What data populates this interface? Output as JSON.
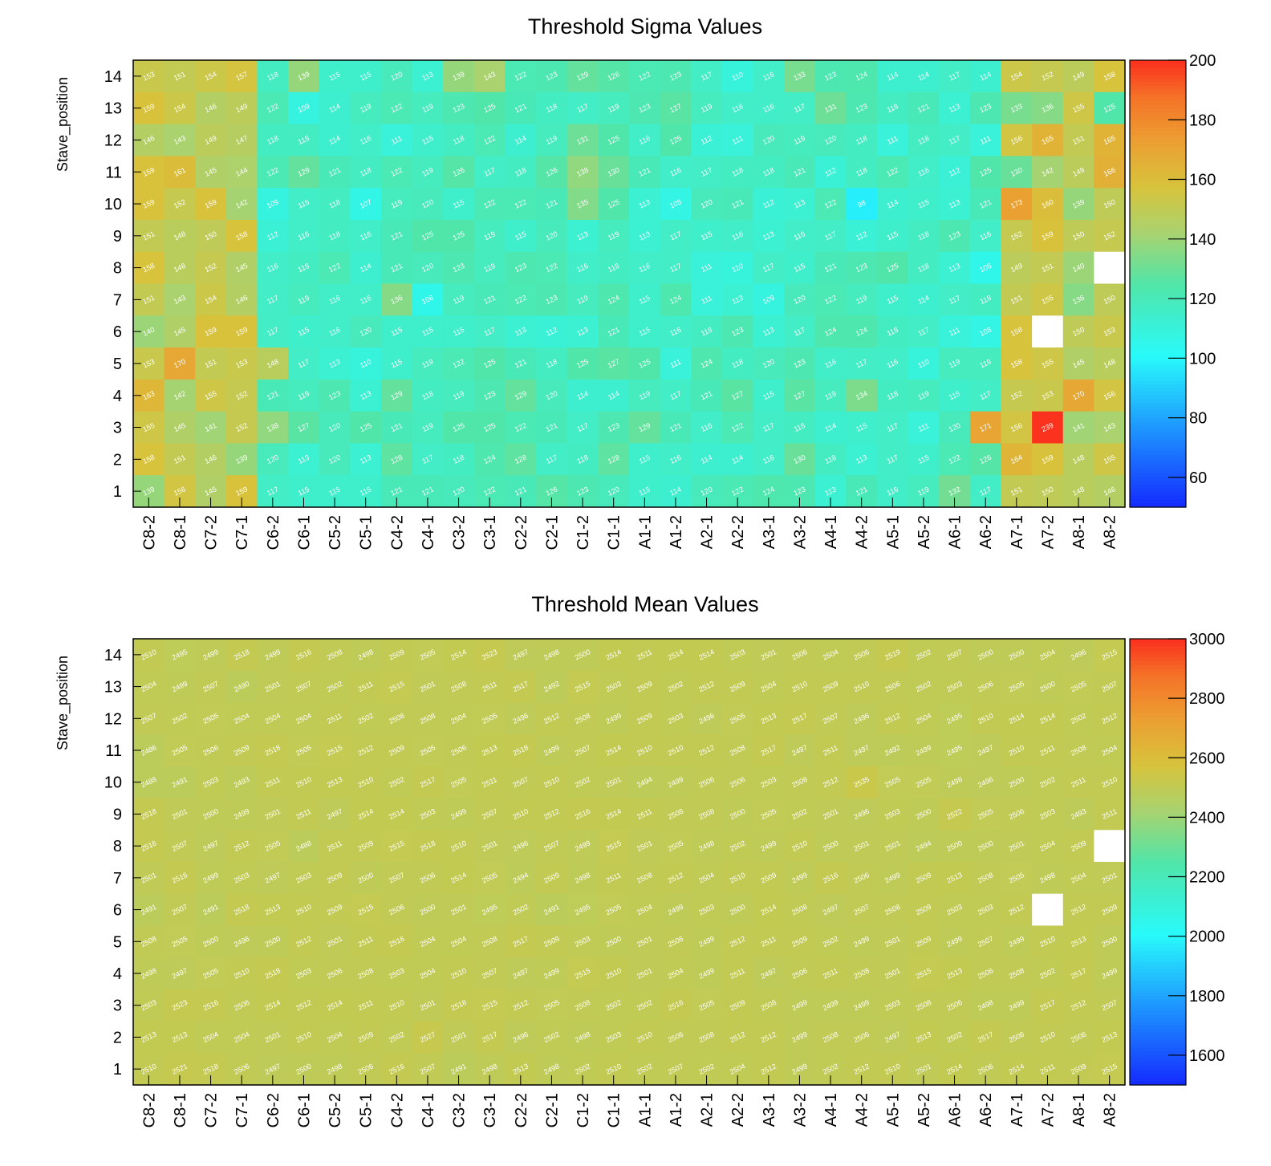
{
  "chart_data": [
    {
      "type": "heatmap",
      "title": "Threshold Sigma Values",
      "ylabel": "Stave_position",
      "x_categories": [
        "C8-2",
        "C8-1",
        "C7-2",
        "C7-1",
        "C6-2",
        "C6-1",
        "C5-2",
        "C5-1",
        "C4-2",
        "C4-1",
        "C3-2",
        "C3-1",
        "C2-2",
        "C2-1",
        "C1-2",
        "C1-1",
        "A1-1",
        "A1-2",
        "A2-1",
        "A2-2",
        "A3-1",
        "A3-2",
        "A4-1",
        "A4-2",
        "A5-1",
        "A5-2",
        "A6-1",
        "A6-2",
        "A7-1",
        "A7-2",
        "A8-1",
        "A8-2"
      ],
      "y_categories": [
        "14",
        "13",
        "12",
        "11",
        "10",
        "9",
        "8",
        "7",
        "6",
        "5",
        "4",
        "3",
        "2",
        "1"
      ],
      "zlim": [
        50,
        200
      ],
      "colorbar_ticks": [
        200,
        180,
        160,
        140,
        120,
        100,
        80,
        60
      ],
      "cell_labels": [
        [
          "153",
          "151",
          "154",
          "157",
          "118",
          "139",
          "115",
          "115",
          "120",
          "113",
          "139",
          "143",
          "122",
          "123",
          "129",
          "126",
          "122",
          "123",
          "117",
          "110",
          "116",
          "133",
          "123",
          "124",
          "114",
          "114",
          "117",
          "114",
          "154",
          "152",
          "149",
          "158"
        ],
        [
          "159",
          "154",
          "146",
          "149",
          "122",
          "109",
          "114",
          "119",
          "122",
          "119",
          "123",
          "125",
          "121",
          "118",
          "117",
          "119",
          "123",
          "127",
          "119",
          "116",
          "116",
          "117",
          "131",
          "123",
          "118",
          "121",
          "113",
          "123",
          "133",
          "136",
          "155",
          "125"
        ],
        [
          "146",
          "143",
          "149",
          "147",
          "118",
          "118",
          "114",
          "116",
          "111",
          "115",
          "118",
          "122",
          "114",
          "119",
          "131",
          "125",
          "116",
          "125",
          "112",
          "111",
          "120",
          "119",
          "120",
          "118",
          "111",
          "118",
          "117",
          "111",
          "156",
          "165",
          "151",
          "165"
        ],
        [
          "159",
          "161",
          "145",
          "144",
          "122",
          "129",
          "121",
          "118",
          "122",
          "119",
          "126",
          "117",
          "118",
          "126",
          "138",
          "130",
          "121",
          "116",
          "117",
          "118",
          "118",
          "121",
          "112",
          "118",
          "122",
          "116",
          "112",
          "125",
          "130",
          "142",
          "149",
          "166"
        ],
        [
          "159",
          "152",
          "159",
          "142",
          "109",
          "116",
          "118",
          "107",
          "119",
          "120",
          "115",
          "122",
          "122",
          "121",
          "135",
          "125",
          "113",
          "108",
          "120",
          "121",
          "112",
          "113",
          "122",
          "98",
          "114",
          "115",
          "113",
          "121",
          "173",
          "160",
          "139",
          "150"
        ],
        [
          "151",
          "148",
          "150",
          "158",
          "112",
          "116",
          "118",
          "116",
          "121",
          "125",
          "125",
          "119",
          "115",
          "120",
          "113",
          "119",
          "113",
          "117",
          "115",
          "116",
          "113",
          "116",
          "117",
          "112",
          "115",
          "118",
          "123",
          "116",
          "152",
          "159",
          "150",
          "152"
        ],
        [
          "158",
          "148",
          "152",
          "145",
          "116",
          "118",
          "122",
          "114",
          "121",
          "120",
          "123",
          "119",
          "123",
          "122",
          "116",
          "118",
          "116",
          "117",
          "111",
          "110",
          "117",
          "115",
          "121",
          "123",
          "125",
          "118",
          "113",
          "106",
          "149",
          "151",
          "140",
          ""
        ],
        [
          "151",
          "143",
          "154",
          "146",
          "117",
          "119",
          "116",
          "116",
          "136",
          "106",
          "119",
          "121",
          "122",
          "123",
          "119",
          "124",
          "115",
          "124",
          "111",
          "113",
          "109",
          "120",
          "122",
          "119",
          "115",
          "114",
          "117",
          "118",
          "151",
          "155",
          "136",
          "150"
        ],
        [
          "140",
          "145",
          "159",
          "159",
          "117",
          "115",
          "116",
          "120",
          "115",
          "115",
          "115",
          "117",
          "113",
          "112",
          "113",
          "121",
          "115",
          "116",
          "118",
          "123",
          "113",
          "117",
          "124",
          "124",
          "118",
          "117",
          "111",
          "108",
          "158",
          "",
          "150",
          "153"
        ],
        [
          "153",
          "170",
          "151",
          "153",
          "148",
          "117",
          "113",
          "110",
          "115",
          "119",
          "122",
          "125",
          "121",
          "118",
          "125",
          "127",
          "125",
          "111",
          "124",
          "118",
          "120",
          "123",
          "116",
          "117",
          "116",
          "110",
          "119",
          "119",
          "158",
          "155",
          "145",
          "148"
        ],
        [
          "163",
          "142",
          "155",
          "152",
          "121",
          "119",
          "123",
          "113",
          "129",
          "118",
          "119",
          "123",
          "129",
          "120",
          "114",
          "114",
          "119",
          "117",
          "121",
          "127",
          "115",
          "127",
          "119",
          "134",
          "118",
          "119",
          "115",
          "117",
          "152",
          "153",
          "170",
          "156"
        ],
        [
          "155",
          "145",
          "141",
          "152",
          "138",
          "127",
          "120",
          "125",
          "121",
          "119",
          "125",
          "125",
          "122",
          "121",
          "117",
          "123",
          "129",
          "121",
          "116",
          "122",
          "117",
          "118",
          "114",
          "115",
          "117",
          "111",
          "120",
          "171",
          "156",
          "239",
          "141",
          "143"
        ],
        [
          "158",
          "151",
          "146",
          "139",
          "120",
          "113",
          "120",
          "113",
          "128",
          "117",
          "118",
          "124",
          "128",
          "117",
          "118",
          "128",
          "115",
          "116",
          "114",
          "114",
          "116",
          "130",
          "118",
          "113",
          "117",
          "115",
          "122",
          "126",
          "164",
          "159",
          "148",
          "155"
        ],
        [
          "139",
          "156",
          "145",
          "159",
          "117",
          "115",
          "115",
          "115",
          "121",
          "121",
          "120",
          "122",
          "121",
          "126",
          "123",
          "120",
          "115",
          "114",
          "120",
          "122",
          "124",
          "123",
          "113",
          "121",
          "116",
          "119",
          "132",
          "117",
          "151",
          "150",
          "148",
          "146"
        ]
      ]
    },
    {
      "type": "heatmap",
      "title": "Threshold Mean Values",
      "ylabel": "Stave_position",
      "x_categories": [
        "C8-2",
        "C8-1",
        "C7-2",
        "C7-1",
        "C6-2",
        "C6-1",
        "C5-2",
        "C5-1",
        "C4-2",
        "C4-1",
        "C3-2",
        "C3-1",
        "C2-2",
        "C2-1",
        "C1-2",
        "C1-1",
        "A1-1",
        "A1-2",
        "A2-1",
        "A2-2",
        "A3-1",
        "A3-2",
        "A4-1",
        "A4-2",
        "A5-1",
        "A5-2",
        "A6-1",
        "A6-2",
        "A7-1",
        "A7-2",
        "A8-1",
        "A8-2"
      ],
      "y_categories": [
        "14",
        "13",
        "12",
        "11",
        "10",
        "9",
        "8",
        "7",
        "6",
        "5",
        "4",
        "3",
        "2",
        "1"
      ],
      "zlim": [
        1500,
        3000
      ],
      "colorbar_ticks": [
        3000,
        2800,
        2600,
        2400,
        2200,
        2000,
        1800,
        1600
      ],
      "cell_labels": [
        [
          "2510",
          "2495",
          "2499",
          "2518",
          "2499",
          "2516",
          "2508",
          "2498",
          "2509",
          "2505",
          "2514",
          "2523",
          "2497",
          "2498",
          "2500",
          "2514",
          "2511",
          "2514",
          "2514",
          "2503",
          "2501",
          "2506",
          "2504",
          "2506",
          "2519",
          "2502",
          "2507",
          "2500",
          "2500",
          "2504",
          "2496",
          "2515"
        ],
        [
          "2504",
          "2499",
          "2507",
          "2490",
          "2501",
          "2507",
          "2502",
          "2511",
          "2515",
          "2501",
          "2508",
          "2511",
          "2517",
          "2492",
          "2515",
          "2503",
          "2509",
          "2502",
          "2512",
          "2509",
          "2504",
          "2510",
          "2509",
          "2510",
          "2506",
          "2502",
          "2503",
          "2506",
          "2505",
          "2500",
          "2505",
          "2507"
        ],
        [
          "2507",
          "2502",
          "2505",
          "2504",
          "2504",
          "2504",
          "2511",
          "2502",
          "2508",
          "2508",
          "2504",
          "2505",
          "2496",
          "2512",
          "2508",
          "2499",
          "2509",
          "2503",
          "2496",
          "2505",
          "2513",
          "2517",
          "2507",
          "2496",
          "2512",
          "2504",
          "2495",
          "2510",
          "2514",
          "2514",
          "2502",
          "2512"
        ],
        [
          "2486",
          "2505",
          "2506",
          "2509",
          "2518",
          "2505",
          "2515",
          "2512",
          "2509",
          "2505",
          "2506",
          "2513",
          "2518",
          "2499",
          "2507",
          "2514",
          "2510",
          "2510",
          "2512",
          "2508",
          "2517",
          "2497",
          "2511",
          "2497",
          "2492",
          "2499",
          "2495",
          "2497",
          "2510",
          "2511",
          "2508",
          "2504"
        ],
        [
          "2488",
          "2491",
          "2503",
          "2493",
          "2511",
          "2510",
          "2513",
          "2510",
          "2502",
          "2517",
          "2505",
          "2511",
          "2507",
          "2510",
          "2502",
          "2501",
          "2494",
          "2499",
          "2506",
          "2506",
          "2503",
          "2508",
          "2512",
          "2535",
          "2505",
          "2505",
          "2498",
          "2496",
          "2500",
          "2502",
          "2511",
          "2510"
        ],
        [
          "2518",
          "2501",
          "2500",
          "2499",
          "2501",
          "2511",
          "2497",
          "2514",
          "2514",
          "2503",
          "2499",
          "2507",
          "2510",
          "2512",
          "2516",
          "2514",
          "2511",
          "2508",
          "2508",
          "2500",
          "2505",
          "2502",
          "2501",
          "2496",
          "2503",
          "2500",
          "2522",
          "2505",
          "2506",
          "2503",
          "2493",
          "2511"
        ],
        [
          "2516",
          "2507",
          "2497",
          "2512",
          "2505",
          "2488",
          "2511",
          "2509",
          "2515",
          "2518",
          "2510",
          "2501",
          "2496",
          "2507",
          "2499",
          "2515",
          "2501",
          "2505",
          "2498",
          "2502",
          "2499",
          "2510",
          "2500",
          "2501",
          "2501",
          "2494",
          "2500",
          "2500",
          "2501",
          "2504",
          "2509",
          ""
        ],
        [
          "2501",
          "2516",
          "2499",
          "2503",
          "2497",
          "2503",
          "2509",
          "2500",
          "2507",
          "2506",
          "2514",
          "2505",
          "2494",
          "2509",
          "2498",
          "2511",
          "2508",
          "2512",
          "2504",
          "2510",
          "2509",
          "2499",
          "2516",
          "2506",
          "2499",
          "2509",
          "2513",
          "2508",
          "2505",
          "2498",
          "2504",
          "2501"
        ],
        [
          "2491",
          "2507",
          "2491",
          "2518",
          "2513",
          "2510",
          "2509",
          "2515",
          "2506",
          "2500",
          "2501",
          "2495",
          "2502",
          "2491",
          "2495",
          "2505",
          "2504",
          "2499",
          "2503",
          "2500",
          "2514",
          "2508",
          "2497",
          "2507",
          "2508",
          "2509",
          "2503",
          "2503",
          "2512",
          "",
          "2512",
          "2509"
        ],
        [
          "2508",
          "2505",
          "2500",
          "2496",
          "2500",
          "2512",
          "2501",
          "2511",
          "2516",
          "2504",
          "2504",
          "2508",
          "2517",
          "2509",
          "2503",
          "2500",
          "2501",
          "2506",
          "2499",
          "2512",
          "2511",
          "2509",
          "2502",
          "2499",
          "2501",
          "2509",
          "2499",
          "2507",
          "2499",
          "2510",
          "2513",
          "2500"
        ],
        [
          "2498",
          "2497",
          "2505",
          "2510",
          "2518",
          "2503",
          "2506",
          "2508",
          "2503",
          "2504",
          "2510",
          "2507",
          "2497",
          "2499",
          "2515",
          "2510",
          "2501",
          "2504",
          "2499",
          "2511",
          "2497",
          "2506",
          "2511",
          "2508",
          "2501",
          "2515",
          "2513",
          "2506",
          "2508",
          "2502",
          "2517",
          "2499"
        ],
        [
          "2503",
          "2523",
          "2516",
          "2506",
          "2514",
          "2512",
          "2514",
          "2511",
          "2510",
          "2501",
          "2518",
          "2515",
          "2512",
          "2505",
          "2508",
          "2502",
          "2502",
          "2516",
          "2505",
          "2509",
          "2508",
          "2499",
          "2499",
          "2499",
          "2503",
          "2508",
          "2506",
          "2498",
          "2499",
          "2517",
          "2512",
          "2507"
        ],
        [
          "2513",
          "2513",
          "2504",
          "2504",
          "2501",
          "2510",
          "2504",
          "2509",
          "2502",
          "2527",
          "2501",
          "2517",
          "2496",
          "2502",
          "2498",
          "2503",
          "2510",
          "2506",
          "2508",
          "2512",
          "2512",
          "2499",
          "2508",
          "2506",
          "2497",
          "2513",
          "2502",
          "2517",
          "2506",
          "2510",
          "2506",
          "2513"
        ],
        [
          "2510",
          "2521",
          "2518",
          "2506",
          "2497",
          "2500",
          "2498",
          "2506",
          "2516",
          "2507",
          "2491",
          "2498",
          "2513",
          "2498",
          "2502",
          "2510",
          "2502",
          "2507",
          "2502",
          "2504",
          "2512",
          "2499",
          "2502",
          "2512",
          "2510",
          "2501",
          "2514",
          "2506",
          "2514",
          "2511",
          "2509",
          "2515"
        ]
      ]
    }
  ]
}
